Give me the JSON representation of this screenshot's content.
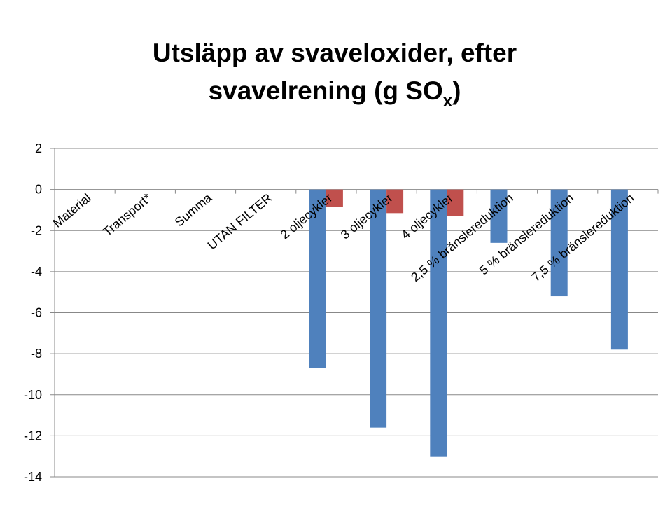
{
  "chart_data": {
    "type": "bar",
    "title": {
      "lines": [
        "Utsläpp av svaveloxider, efter",
        "svavelrening (g SO"
      ],
      "subscript": "x",
      "end": ")"
    },
    "categories": [
      "Material",
      "Transport*",
      "Summa",
      "UTAN FILTER",
      "2 oljecykler",
      "3 oljecykler",
      "4 oljecykler",
      "2,5 % bränslereduktion",
      "5 % bränslereduktion",
      "7,5 % bränslereduktion"
    ],
    "series": [
      {
        "color": "#4f81bd",
        "values": [
          0,
          0,
          0,
          0,
          -8.7,
          -11.6,
          -13,
          -2.6,
          -5.2,
          -7.8
        ]
      },
      {
        "color": "#c0504d",
        "values": [
          null,
          null,
          null,
          null,
          -0.85,
          -1.15,
          -1.3,
          null,
          null,
          null
        ]
      }
    ],
    "ylim": [
      -14,
      2
    ],
    "yticks": [
      2,
      0,
      -2,
      -4,
      -6,
      -8,
      -10,
      -12,
      -14
    ],
    "grid": true
  }
}
